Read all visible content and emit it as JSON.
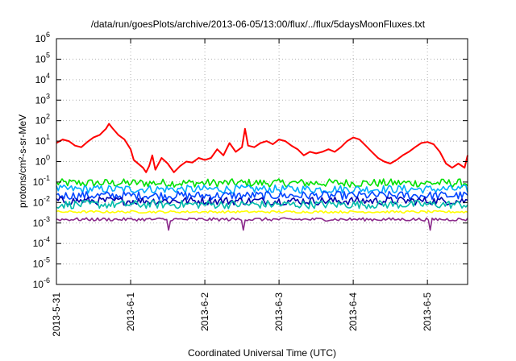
{
  "chart_data": {
    "type": "line",
    "title": "/data/run/goesPlots/archive/2013-06-05/13:00/flux/../flux/5daysMoonFluxes.txt",
    "xlabel": "Coordinated Universal Time (UTC)",
    "ylabel": "protons/cm²-s-sr-MeV",
    "yscale": "log",
    "ylim_exp": [
      -6,
      6
    ],
    "xlim": [
      "2013-05-31 00:00",
      "2013-06-05 13:00"
    ],
    "x_ticks": [
      "2013-5-31",
      "2013-6-1",
      "2013-6-2",
      "2013-6-3",
      "2013-6-4",
      "2013-6-5"
    ],
    "y_tick_exponents": [
      -6,
      -5,
      -4,
      -3,
      -2,
      -1,
      0,
      1,
      2,
      3,
      4,
      5,
      6
    ],
    "grid": true,
    "series": [
      {
        "color": "#ff0000",
        "x": [
          "2013-05-31 00:00",
          "2013-05-31 02:00",
          "2013-05-31 04:00",
          "2013-05-31 06:00",
          "2013-05-31 08:00",
          "2013-05-31 10:00",
          "2013-05-31 12:00",
          "2013-05-31 14:00",
          "2013-05-31 16:00",
          "2013-05-31 17:00",
          "2013-05-31 18:00",
          "2013-05-31 20:00",
          "2013-05-31 22:00",
          "2013-06-01 00:00",
          "2013-06-01 01:00",
          "2013-06-01 02:00",
          "2013-06-01 04:00",
          "2013-06-01 05:00",
          "2013-06-01 06:00",
          "2013-06-01 07:00",
          "2013-06-01 08:00",
          "2013-06-01 10:00",
          "2013-06-01 12:00",
          "2013-06-01 14:00",
          "2013-06-01 16:00",
          "2013-06-01 18:00",
          "2013-06-01 20:00",
          "2013-06-01 22:00",
          "2013-06-02 00:00",
          "2013-06-02 02:00",
          "2013-06-02 04:00",
          "2013-06-02 06:00",
          "2013-06-02 08:00",
          "2013-06-02 10:00",
          "2013-06-02 12:00",
          "2013-06-02 13:00",
          "2013-06-02 14:00",
          "2013-06-02 16:00",
          "2013-06-02 18:00",
          "2013-06-02 20:00",
          "2013-06-02 22:00",
          "2013-06-03 00:00",
          "2013-06-03 02:00",
          "2013-06-03 04:00",
          "2013-06-03 06:00",
          "2013-06-03 08:00",
          "2013-06-03 10:00",
          "2013-06-03 12:00",
          "2013-06-03 14:00",
          "2013-06-03 16:00",
          "2013-06-03 18:00",
          "2013-06-03 20:00",
          "2013-06-03 22:00",
          "2013-06-04 00:00",
          "2013-06-04 02:00",
          "2013-06-04 04:00",
          "2013-06-04 06:00",
          "2013-06-04 08:00",
          "2013-06-04 10:00",
          "2013-06-04 12:00",
          "2013-06-04 14:00",
          "2013-06-04 16:00",
          "2013-06-04 18:00",
          "2013-06-04 20:00",
          "2013-06-04 22:00",
          "2013-06-05 00:00",
          "2013-06-05 02:00",
          "2013-06-05 04:00",
          "2013-06-05 06:00",
          "2013-06-05 08:00",
          "2013-06-05 10:00",
          "2013-06-05 12:00",
          "2013-06-05 13:00"
        ],
        "y": [
          8,
          12,
          10,
          6,
          5,
          9,
          15,
          20,
          40,
          70,
          45,
          20,
          12,
          4,
          1.2,
          0.9,
          0.5,
          0.3,
          0.6,
          2,
          0.4,
          1.5,
          0.8,
          0.3,
          0.6,
          1.0,
          0.9,
          1.5,
          1.2,
          1.5,
          4,
          2,
          8,
          3,
          5,
          40,
          6,
          5,
          8,
          10,
          7,
          12,
          10,
          6,
          4,
          2,
          3,
          2.5,
          3,
          4,
          3,
          5,
          10,
          15,
          12,
          6,
          3,
          1.5,
          1,
          0.8,
          1.2,
          2,
          3,
          5,
          8,
          9,
          7,
          3,
          0.8,
          0.5,
          0.8,
          0.5,
          2
        ]
      },
      {
        "color": "#00e000",
        "level_y": 0.09,
        "x": [
          "2013-05-31 00:00",
          "2013-05-31 12:00",
          "2013-06-01 00:00",
          "2013-06-01 12:00",
          "2013-06-02 00:00",
          "2013-06-02 12:00",
          "2013-06-03 00:00",
          "2013-06-03 12:00",
          "2013-06-04 00:00",
          "2013-06-04 12:00",
          "2013-06-05 00:00",
          "2013-06-05 13:00"
        ],
        "y": [
          0.09,
          0.1,
          0.08,
          0.09,
          0.1,
          0.085,
          0.09,
          0.1,
          0.08,
          0.09,
          0.1,
          0.09
        ]
      },
      {
        "color": "#00aaff",
        "level_y": 0.045,
        "x": [
          "2013-05-31 00:00",
          "2013-05-31 12:00",
          "2013-06-01 00:00",
          "2013-06-01 12:00",
          "2013-06-02 00:00",
          "2013-06-02 12:00",
          "2013-06-03 00:00",
          "2013-06-03 12:00",
          "2013-06-04 00:00",
          "2013-06-04 12:00",
          "2013-06-05 00:00",
          "2013-06-05 13:00"
        ],
        "y": [
          0.045,
          0.05,
          0.04,
          0.045,
          0.05,
          0.04,
          0.045,
          0.05,
          0.04,
          0.045,
          0.05,
          0.045
        ]
      },
      {
        "color": "#0044ff",
        "level_y": 0.022,
        "x": [
          "2013-05-31 00:00",
          "2013-05-31 12:00",
          "2013-06-01 00:00",
          "2013-06-01 12:00",
          "2013-06-02 00:00",
          "2013-06-02 12:00",
          "2013-06-03 00:00",
          "2013-06-03 12:00",
          "2013-06-04 00:00",
          "2013-06-04 12:00",
          "2013-06-05 00:00",
          "2013-06-05 13:00"
        ],
        "y": [
          0.022,
          0.025,
          0.02,
          0.022,
          0.025,
          0.02,
          0.022,
          0.025,
          0.02,
          0.022,
          0.025,
          0.022
        ]
      },
      {
        "color": "#0000aa",
        "level_y": 0.012,
        "x": [
          "2013-05-31 00:00",
          "2013-05-31 12:00",
          "2013-06-01 00:00",
          "2013-06-01 12:00",
          "2013-06-02 00:00",
          "2013-06-02 12:00",
          "2013-06-03 00:00",
          "2013-06-03 12:00",
          "2013-06-04 00:00",
          "2013-06-04 12:00",
          "2013-06-05 00:00",
          "2013-06-05 13:00"
        ],
        "y": [
          0.012,
          0.014,
          0.011,
          0.012,
          0.014,
          0.011,
          0.012,
          0.014,
          0.011,
          0.012,
          0.014,
          0.012
        ]
      },
      {
        "color": "#00bbaa",
        "level_y": 0.008,
        "x": [
          "2013-05-31 00:00",
          "2013-05-31 12:00",
          "2013-06-01 00:00",
          "2013-06-01 12:00",
          "2013-06-02 00:00",
          "2013-06-02 12:00",
          "2013-06-03 00:00",
          "2013-06-03 12:00",
          "2013-06-04 00:00",
          "2013-06-04 12:00",
          "2013-06-05 00:00",
          "2013-06-05 13:00"
        ],
        "y": [
          0.008,
          0.009,
          0.0075,
          0.008,
          0.009,
          0.0075,
          0.008,
          0.009,
          0.0075,
          0.008,
          0.009,
          0.008
        ]
      },
      {
        "color": "#ffff00",
        "level_y": 0.0035,
        "x": [
          "2013-05-31 00:00",
          "2013-05-31 12:00",
          "2013-06-01 00:00",
          "2013-06-01 12:00",
          "2013-06-02 00:00",
          "2013-06-02 12:00",
          "2013-06-03 00:00",
          "2013-06-03 12:00",
          "2013-06-04 00:00",
          "2013-06-04 12:00",
          "2013-06-05 00:00",
          "2013-06-05 13:00"
        ],
        "y": [
          0.0035,
          0.0036,
          0.0034,
          0.0035,
          0.0036,
          0.0034,
          0.0035,
          0.0036,
          0.0034,
          0.0035,
          0.0036,
          0.0035
        ]
      },
      {
        "color": "#8b2a8b",
        "level_y": 0.0015,
        "x": [
          "2013-05-31 00:00",
          "2013-05-31 12:00",
          "2013-06-01 00:00",
          "2013-06-01 12:00",
          "2013-06-02 00:00",
          "2013-06-02 12:00",
          "2013-06-03 00:00",
          "2013-06-03 12:00",
          "2013-06-04 00:00",
          "2013-06-04 12:00",
          "2013-06-05 00:00",
          "2013-06-05 13:00"
        ],
        "y": [
          0.0015,
          0.0016,
          0.0014,
          0.0015,
          0.0016,
          0.0014,
          0.0015,
          0.0016,
          0.0014,
          0.0015,
          0.0016,
          0.0015
        ]
      }
    ]
  }
}
